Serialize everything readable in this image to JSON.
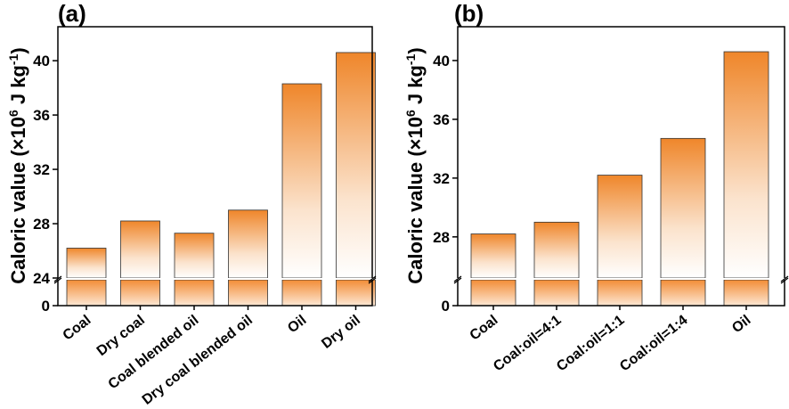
{
  "chart_data": [
    {
      "type": "bar",
      "panel_label": "(a)",
      "ylabel_text": "Caloric value (×10",
      "ylabel_sup": "6",
      "ylabel_unit": " J kg",
      "ylabel_unit_sup": "-1",
      "ylabel_close": ")",
      "categories": [
        "Coal",
        "Dry coal",
        "Coal blended oil",
        "Dry coal blended oil",
        "Oil",
        "Dry oil"
      ],
      "values": [
        26.2,
        28.2,
        27.3,
        29.0,
        38.3,
        40.6
      ],
      "yticks_upper": [
        "24",
        "28",
        "32",
        "36",
        "40"
      ],
      "ytick_lower": "0",
      "ylim_upper": [
        24,
        42.5
      ],
      "axis_break": true,
      "bar_gradient": [
        "#ffffff",
        "#f08a30"
      ],
      "grid": false,
      "legend": "none"
    },
    {
      "type": "bar",
      "panel_label": "(b)",
      "ylabel_text": "Caloric value (×10",
      "ylabel_sup": "6",
      "ylabel_unit": " J kg",
      "ylabel_unit_sup": "-1",
      "ylabel_close": ")",
      "categories": [
        "Coal",
        "Coal:oil=4:1",
        "Coal:oil=1:1",
        "Coal:oil=1:4",
        "Oil"
      ],
      "values": [
        28.2,
        29.0,
        32.2,
        34.7,
        40.6
      ],
      "yticks_upper": [
        "28",
        "32",
        "36",
        "40"
      ],
      "ytick_lower": "0",
      "ylim_upper": [
        25.2,
        42.3
      ],
      "axis_break": true,
      "bar_gradient": [
        "#ffffff",
        "#f08a30"
      ],
      "grid": false,
      "legend": "none"
    }
  ]
}
